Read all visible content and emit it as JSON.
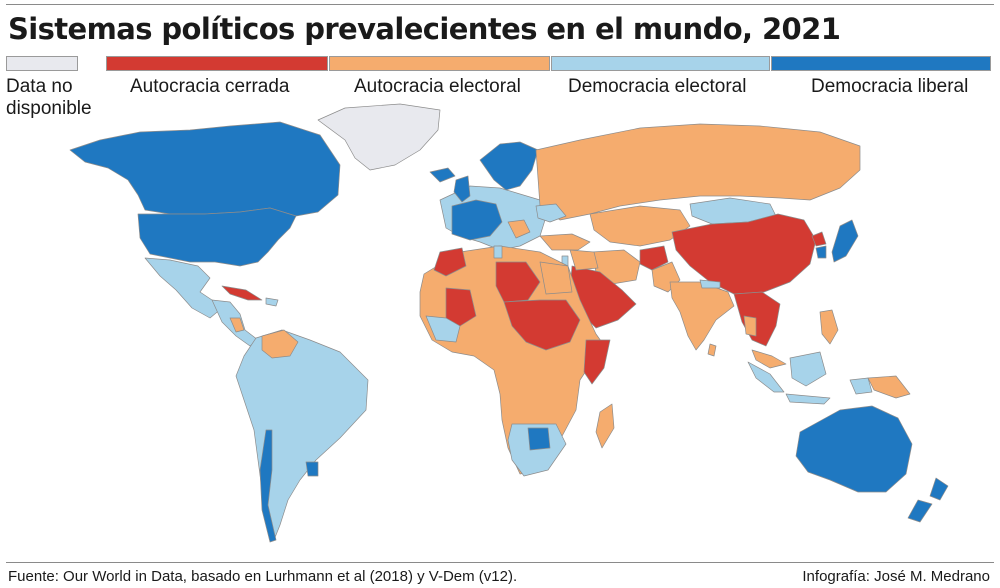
{
  "title": "Sistemas políticos prevalecientes en el mundo, 2021",
  "legend": [
    {
      "key": "na",
      "label": "Data no disponible",
      "color": "#e8e9ee"
    },
    {
      "key": "autocracia_cerrada",
      "label": "Autocracia cerrada",
      "color": "#d33a32"
    },
    {
      "key": "autocracia_electoral",
      "label": "Autocracia electoral",
      "color": "#f5ac6e"
    },
    {
      "key": "democracia_electoral",
      "label": "Democracia electoral",
      "color": "#a7d3ea"
    },
    {
      "key": "democracia_liberal",
      "label": "Democracia liberal",
      "color": "#1f78c1"
    }
  ],
  "source": "Fuente:  Our World in Data, basado en Lurhmann et al (2018) y V-Dem (v12).",
  "credit": "Infografía: José M. Medrano"
}
